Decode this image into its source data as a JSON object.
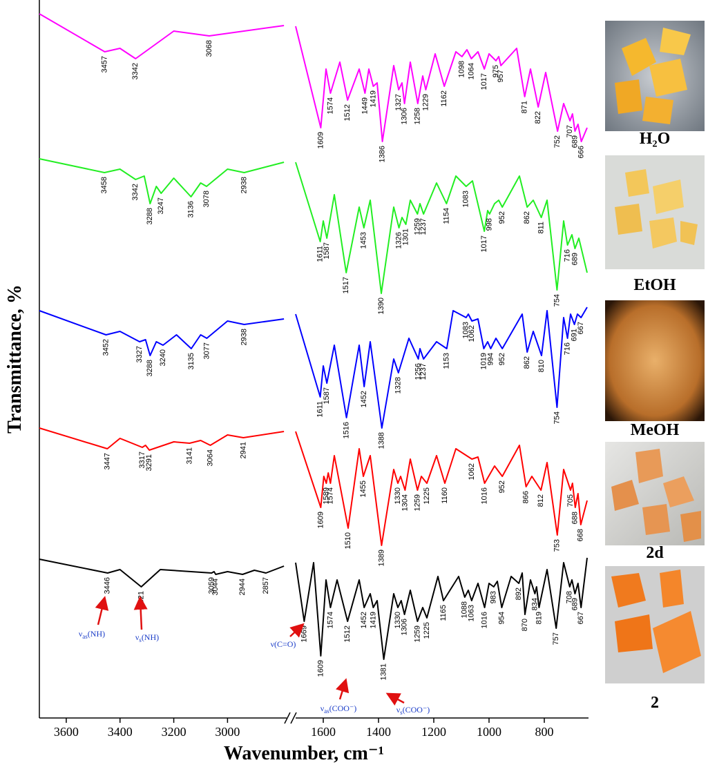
{
  "chart_data": {
    "type": "line",
    "y_label": "Transmittance, %",
    "x_label": "Wavenumber, cm⁻¹",
    "xlim": [
      [
        3700,
        2780
      ],
      [
        1700,
        640
      ]
    ],
    "xticks": [
      3600,
      3400,
      3200,
      3000,
      1600,
      1400,
      1200,
      1000,
      800
    ],
    "ylim": [
      0,
      104
    ],
    "series": [
      {
        "name": "H₂O",
        "color": "#ff00ff",
        "x": [
          3700,
          3457,
          3400,
          3342,
          3200,
          3068,
          2790,
          null,
          1700,
          1609,
          1590,
          1574,
          1540,
          1512,
          1470,
          1449,
          1435,
          1419,
          1405,
          1386,
          1345,
          1327,
          1315,
          1306,
          1285,
          1258,
          1240,
          1229,
          1195,
          1162,
          1120,
          1098,
          1080,
          1064,
          1040,
          1017,
          1000,
          975,
          965,
          957,
          900,
          871,
          850,
          822,
          795,
          752,
          730,
          707,
          698,
          689,
          678,
          666,
          645
        ],
        "values": [
          102,
          96.5,
          97,
          95.5,
          99.5,
          98.8,
          100.3,
          null,
          100.2,
          85.5,
          94,
          90.5,
          95,
          89.5,
          94,
          90.5,
          94,
          91.5,
          92,
          83.5,
          94.5,
          91,
          92,
          89,
          95,
          89,
          93,
          91,
          96.2,
          91.5,
          96.5,
          95.8,
          96.8,
          95.5,
          96.5,
          94,
          96.2,
          95.2,
          95.8,
          94.5,
          97,
          90,
          94,
          88.5,
          93.5,
          85,
          89,
          86.5,
          87.5,
          85,
          86,
          83.5,
          85.5
        ]
      },
      {
        "name": "EtOH",
        "color": "#22ee22",
        "x": [
          3700,
          3458,
          3400,
          3342,
          3310,
          3288,
          3265,
          3247,
          3200,
          3136,
          3100,
          3078,
          3000,
          2938,
          2790,
          null,
          1700,
          1611,
          1600,
          1587,
          1560,
          1517,
          1470,
          1453,
          1430,
          1390,
          1345,
          1326,
          1315,
          1301,
          1285,
          1259,
          1250,
          1237,
          1190,
          1154,
          1120,
          1083,
          1060,
          1017,
          1005,
          998,
          980,
          965,
          952,
          890,
          862,
          840,
          811,
          790,
          754,
          730,
          716,
          700,
          689,
          675,
          645
        ],
        "values": [
          81,
          79,
          79.5,
          78,
          78.5,
          74.5,
          77,
          76,
          78.2,
          75.5,
          77.5,
          77,
          79.5,
          79,
          80.5,
          null,
          80.5,
          69,
          72,
          69.5,
          75.8,
          64.5,
          74,
          71,
          75,
          61.5,
          74,
          71,
          72.5,
          71.5,
          75,
          73,
          74.5,
          73,
          77.5,
          74.5,
          78.5,
          77,
          77.8,
          70.5,
          73.5,
          73,
          74.5,
          75,
          74,
          78.5,
          74,
          75,
          72.5,
          75,
          62,
          72,
          68.5,
          70,
          68,
          69.5,
          64.5
        ]
      },
      {
        "name": "MeOH",
        "color": "#0000ff",
        "x": [
          3700,
          3452,
          3400,
          3327,
          3305,
          3288,
          3265,
          3240,
          3190,
          3135,
          3100,
          3077,
          3000,
          2938,
          2790,
          null,
          1700,
          1611,
          1600,
          1587,
          1560,
          1516,
          1470,
          1452,
          1430,
          1388,
          1345,
          1328,
          1290,
          1256,
          1250,
          1237,
          1190,
          1153,
          1130,
          1083,
          1075,
          1062,
          1040,
          1019,
          1005,
          994,
          975,
          952,
          880,
          862,
          840,
          810,
          790,
          754,
          730,
          716,
          705,
          691,
          680,
          667,
          645
        ],
        "values": [
          59,
          55.5,
          56,
          54.5,
          54.8,
          52.5,
          54.5,
          54,
          55.5,
          53.5,
          55.5,
          55,
          57.5,
          57,
          57.8,
          null,
          58.5,
          46.5,
          51,
          48.5,
          54,
          43.5,
          54,
          48,
          54.5,
          42,
          52,
          50,
          55,
          52,
          53.5,
          52,
          54.5,
          53.5,
          59,
          58,
          58.5,
          57.5,
          57.8,
          53.5,
          54.5,
          53.5,
          55,
          53.5,
          58.5,
          53,
          56,
          52.5,
          59,
          45,
          58,
          55,
          58.5,
          57,
          58.5,
          58,
          59.5
        ]
      },
      {
        "name": "2d",
        "color": "#ff0000",
        "x": [
          3700,
          3447,
          3400,
          3317,
          3305,
          3291,
          3200,
          3141,
          3100,
          3064,
          3000,
          2941,
          2790,
          null,
          1700,
          1609,
          1598,
          1589,
          1582,
          1574,
          1560,
          1510,
          1470,
          1455,
          1430,
          1389,
          1345,
          1330,
          1320,
          1304,
          1285,
          1259,
          1245,
          1225,
          1190,
          1160,
          1120,
          1062,
          1040,
          1016,
          980,
          952,
          890,
          866,
          845,
          812,
          790,
          753,
          730,
          705,
          698,
          688,
          678,
          668,
          645
        ],
        "values": [
          42,
          39,
          40.5,
          39.2,
          39.5,
          38.8,
          40,
          39.8,
          40.2,
          39.5,
          41,
          40.6,
          41.5,
          null,
          41.5,
          30.5,
          35,
          34,
          35.5,
          34,
          38,
          27.5,
          39,
          35,
          38,
          25,
          36,
          34,
          35,
          33,
          37.5,
          33,
          35,
          34,
          38,
          34,
          39,
          37.5,
          37.8,
          34,
          36.5,
          35,
          39.5,
          33.5,
          35,
          33,
          37,
          26.5,
          36,
          33,
          34,
          30.5,
          32.5,
          28,
          31.5
        ]
      },
      {
        "name": "2",
        "color": "#000000",
        "x": [
          3700,
          3446,
          3400,
          3321,
          3250,
          3059,
          3050,
          3044,
          3000,
          2944,
          2900,
          2857,
          2790,
          null,
          1700,
          1669,
          1635,
          1609,
          1590,
          1574,
          1550,
          1512,
          1470,
          1452,
          1430,
          1419,
          1405,
          1381,
          1345,
          1330,
          1318,
          1306,
          1285,
          1259,
          1240,
          1225,
          1185,
          1165,
          1110,
          1088,
          1075,
          1063,
          1040,
          1016,
          1000,
          983,
          970,
          954,
          920,
          892,
          880,
          870,
          850,
          834,
          828,
          819,
          790,
          757,
          730,
          708,
          700,
          689,
          678,
          667,
          645
        ],
        "values": [
          23,
          21,
          21.5,
          19,
          21.5,
          21,
          21.2,
          20.8,
          21.2,
          20.8,
          21.4,
          21,
          22,
          null,
          22.5,
          14,
          22.5,
          9,
          20,
          16,
          20,
          14,
          20,
          16,
          18,
          16,
          17,
          8.5,
          18,
          16,
          17,
          15,
          18.5,
          14,
          16,
          14.5,
          20.5,
          17,
          20.5,
          17.5,
          18.5,
          17,
          19.5,
          16,
          19.5,
          19,
          19.8,
          16,
          20.5,
          19.5,
          21,
          15,
          20,
          18,
          19,
          16,
          21.5,
          13,
          22.5,
          19,
          20,
          18,
          19.5,
          16,
          23.2
        ]
      }
    ],
    "annotations": [
      {
        "symbol": "ν",
        "sub": "as",
        "text": "(NH)"
      },
      {
        "symbol": "ν",
        "sub": "s",
        "text": "(NH)"
      },
      {
        "symbol": "ν",
        "text": "(C=O)"
      },
      {
        "symbol": "ν",
        "sub": "as",
        "text": "(COO⁻)"
      },
      {
        "symbol": "ν",
        "sub": "s",
        "text": "(COO⁻)"
      }
    ]
  }
}
